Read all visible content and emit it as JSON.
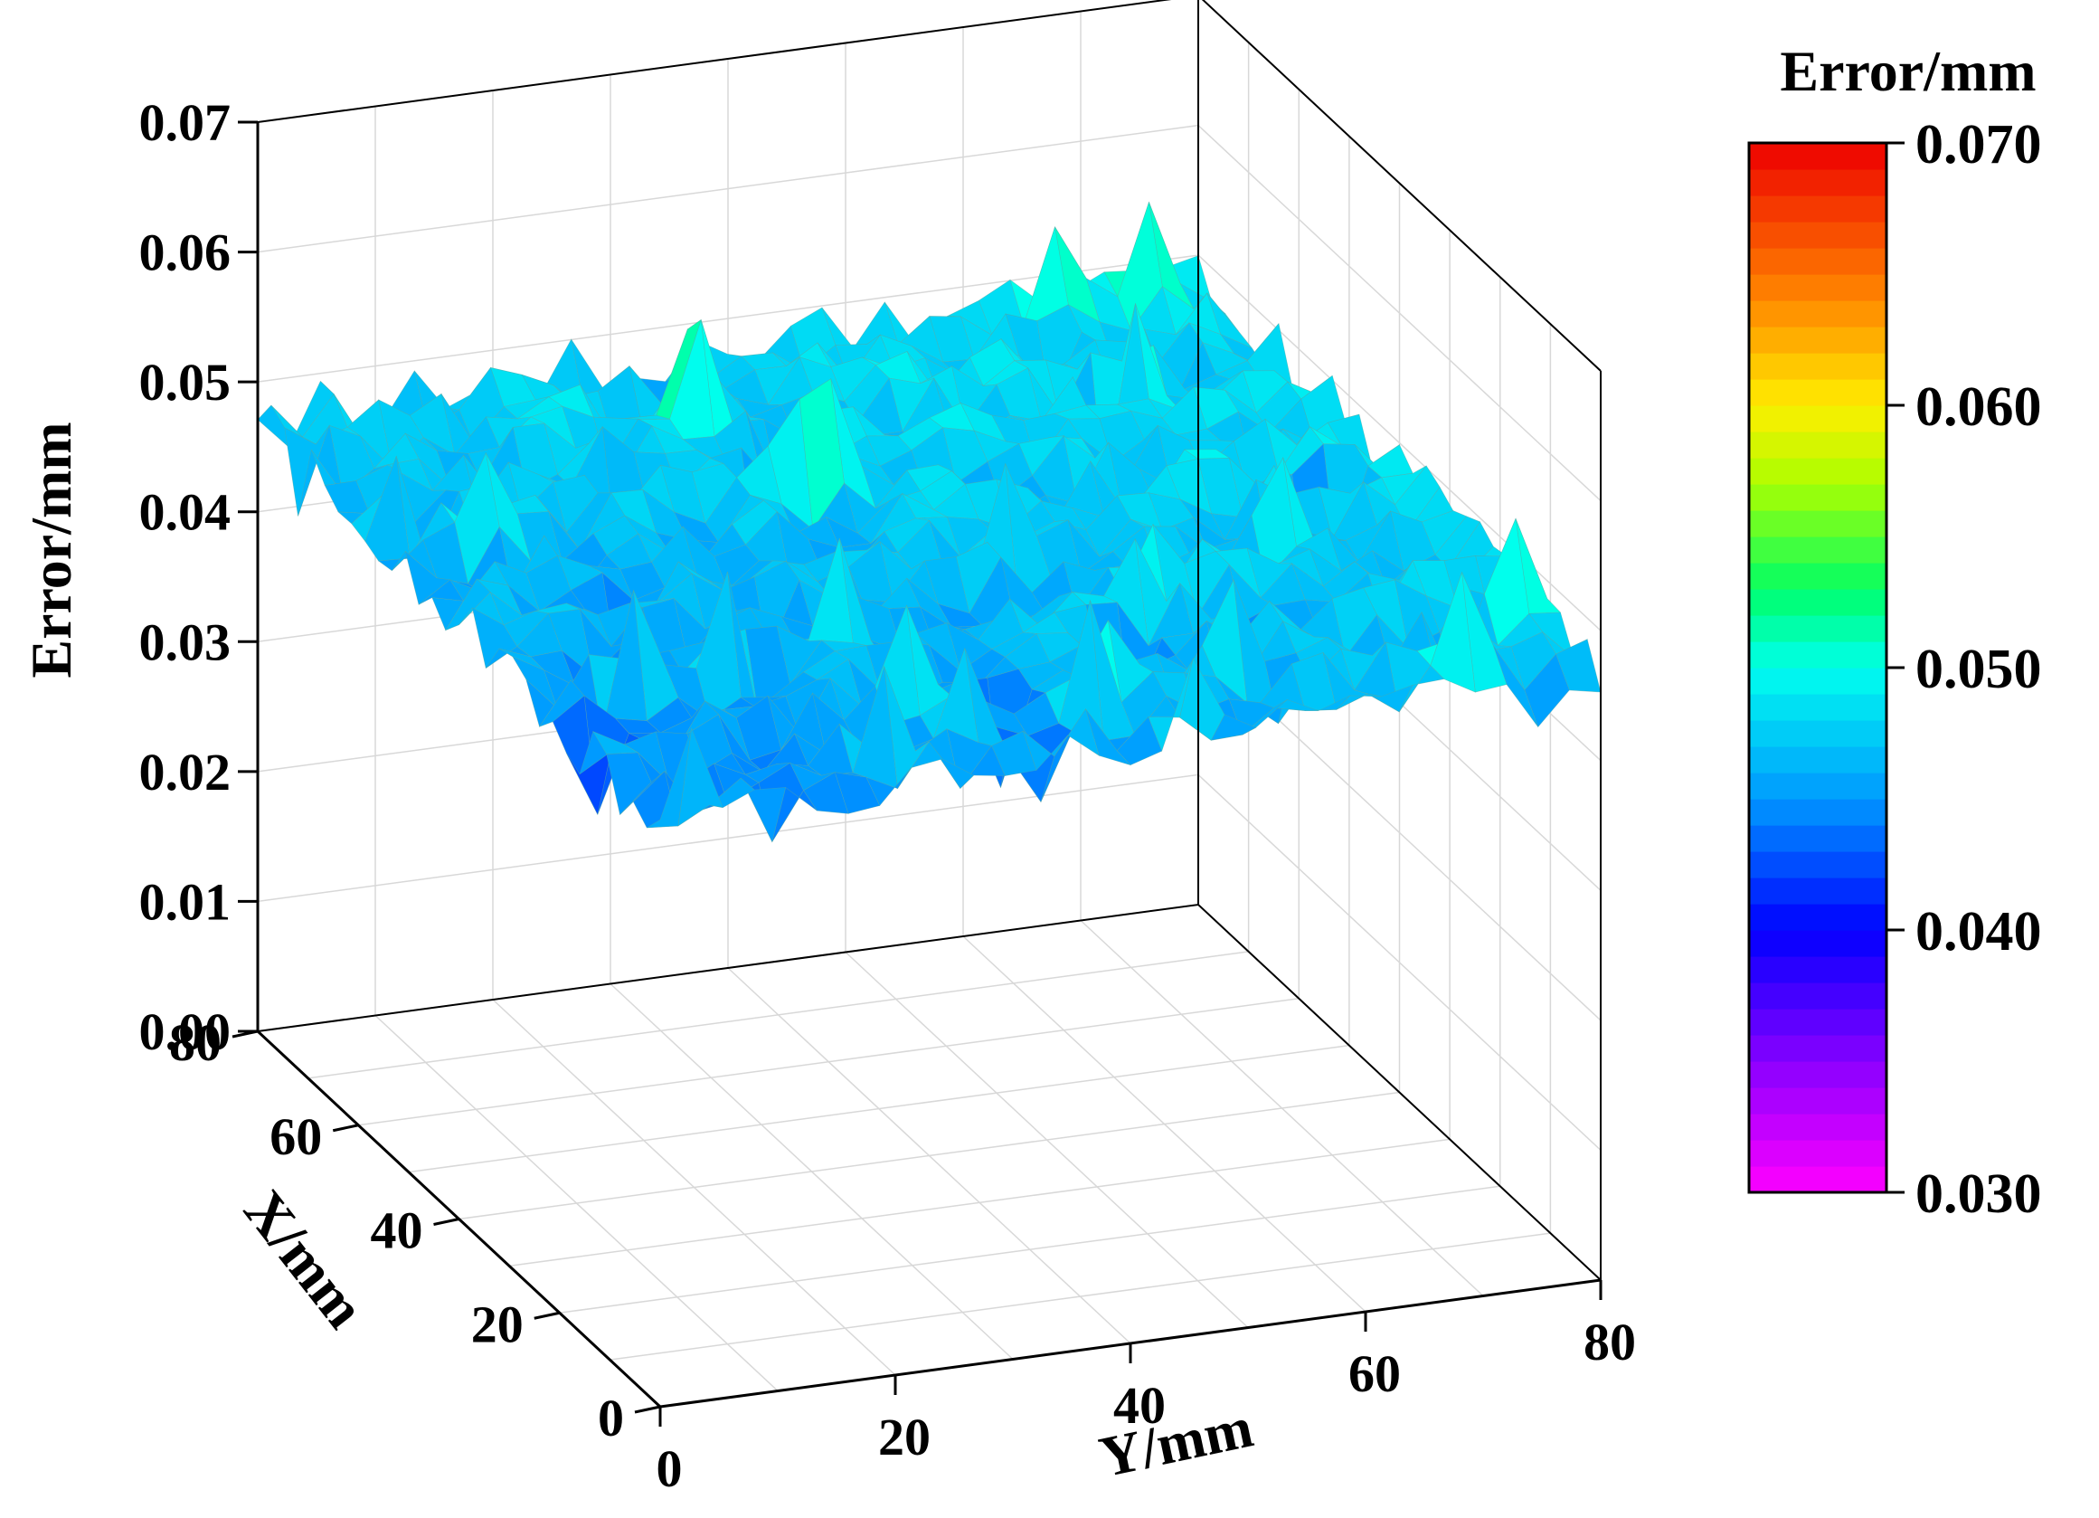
{
  "chart_data": {
    "type": "surface3d",
    "title": "",
    "zlabel": "Error/mm",
    "xlabel": "X/mm",
    "ylabel": "Y/mm",
    "x_range": [
      0,
      80
    ],
    "y_range": [
      0,
      80
    ],
    "z_range": [
      0,
      0.07
    ],
    "x_ticks": [
      "0",
      "20",
      "40",
      "60",
      "80"
    ],
    "y_ticks": [
      "0",
      "20",
      "40",
      "60",
      "80"
    ],
    "z_ticks": [
      "0.00",
      "0.01",
      "0.02",
      "0.03",
      "0.04",
      "0.05",
      "0.06",
      "0.07"
    ],
    "grid_steps": 8,
    "surface": {
      "grid_points": 31,
      "mean_error": 0.046,
      "description_range": [
        0.04,
        0.052
      ],
      "corner_values": {
        "x0_y0": 0.045,
        "x80_y0": 0.048,
        "x0_y80": 0.048,
        "x80_y80": 0.049
      }
    },
    "colorbar": {
      "title": "Error/mm",
      "min": 0.03,
      "max": 0.07,
      "ticks": [
        "0.070",
        "0.060",
        "0.050",
        "0.040",
        "0.030"
      ],
      "stops": [
        {
          "v": 0.03,
          "color": "#ff00ff"
        },
        {
          "v": 0.035,
          "color": "#8800ff"
        },
        {
          "v": 0.04,
          "color": "#0000ff"
        },
        {
          "v": 0.045,
          "color": "#0099ff"
        },
        {
          "v": 0.05,
          "color": "#00ffee"
        },
        {
          "v": 0.053,
          "color": "#00ff66"
        },
        {
          "v": 0.057,
          "color": "#aaff00"
        },
        {
          "v": 0.06,
          "color": "#ffee00"
        },
        {
          "v": 0.064,
          "color": "#ff8800"
        },
        {
          "v": 0.07,
          "color": "#ee0000"
        }
      ]
    }
  }
}
